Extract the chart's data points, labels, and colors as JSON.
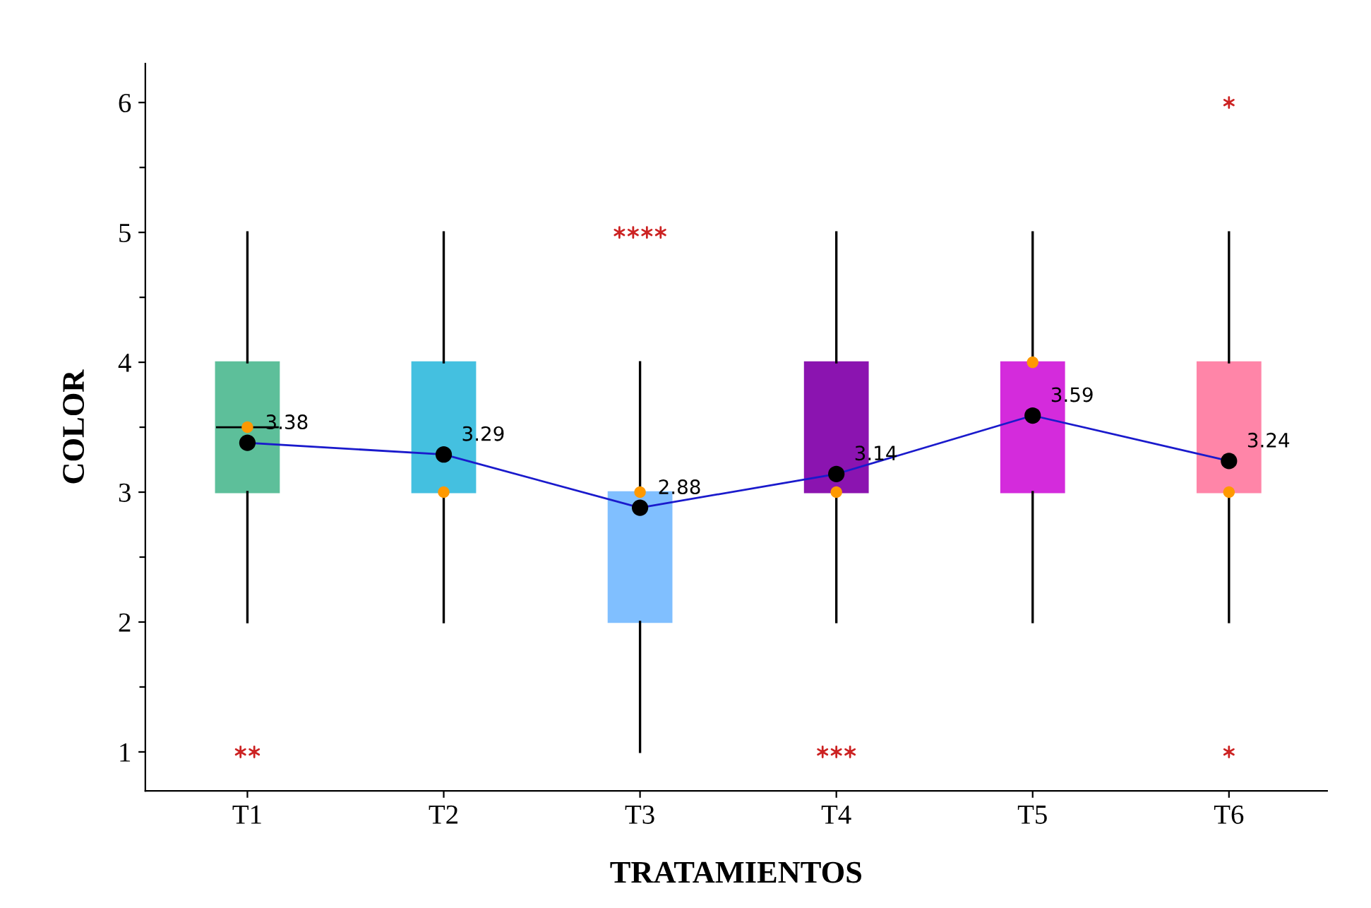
{
  "chart_data": {
    "type": "box",
    "xlabel": "TRATAMIENTOS",
    "ylabel": "COLOR",
    "categories": [
      "T1",
      "T2",
      "T3",
      "T4",
      "T5",
      "T6"
    ],
    "colors": [
      "#5dbf9a",
      "#44c0e0",
      "#80bfff",
      "#8b14b0",
      "#d42bdc",
      "#ff85a8"
    ],
    "boxes": [
      {
        "low": 2,
        "q1": 3,
        "median": 3.5,
        "q3": 4,
        "high": 5,
        "outliers": [
          1,
          1
        ]
      },
      {
        "low": 2,
        "q1": 3,
        "median": 3,
        "q3": 4,
        "high": 5
      },
      {
        "low": 1,
        "q1": 2,
        "median": 3,
        "q3": 3,
        "high": 4,
        "outliers": [
          5,
          5,
          5,
          5
        ]
      },
      {
        "low": 2,
        "q1": 3,
        "median": 3,
        "q3": 4,
        "high": 5,
        "outliers": [
          1,
          1,
          1
        ]
      },
      {
        "low": 2,
        "q1": 3,
        "median": 4,
        "q3": 4,
        "high": 5
      },
      {
        "low": 2,
        "q1": 3,
        "median": 3,
        "q3": 4,
        "high": 5,
        "outliers": [
          6,
          1
        ]
      }
    ],
    "series": [
      {
        "type": "scatter",
        "color": "#ff9900",
        "values": [
          3.5,
          3,
          3,
          3,
          4,
          3
        ]
      },
      {
        "type": "line",
        "color": "#1a1acc",
        "values": [
          3.38,
          3.29,
          2.88,
          3.14,
          3.59,
          3.24
        ],
        "value_labels": [
          "3.38",
          "3.29",
          "2.88",
          "3.14",
          "3.59",
          "3.24"
        ]
      },
      {
        "type": "scatter",
        "color": "#000000",
        "values": [
          3.38,
          3.29,
          2.88,
          3.14,
          3.59,
          3.24
        ]
      }
    ],
    "ylim": [
      0.7,
      6.3
    ],
    "yticks": [
      1,
      {
        "value": 1.5,
        "label": null
      },
      2,
      {
        "value": 2.5,
        "label": null
      },
      3,
      {
        "value": 3.5,
        "label": null
      },
      4,
      {
        "value": 4.5,
        "label": null
      },
      5,
      {
        "value": 5.5,
        "label": null
      },
      6
    ],
    "grid": false,
    "legend": false
  }
}
